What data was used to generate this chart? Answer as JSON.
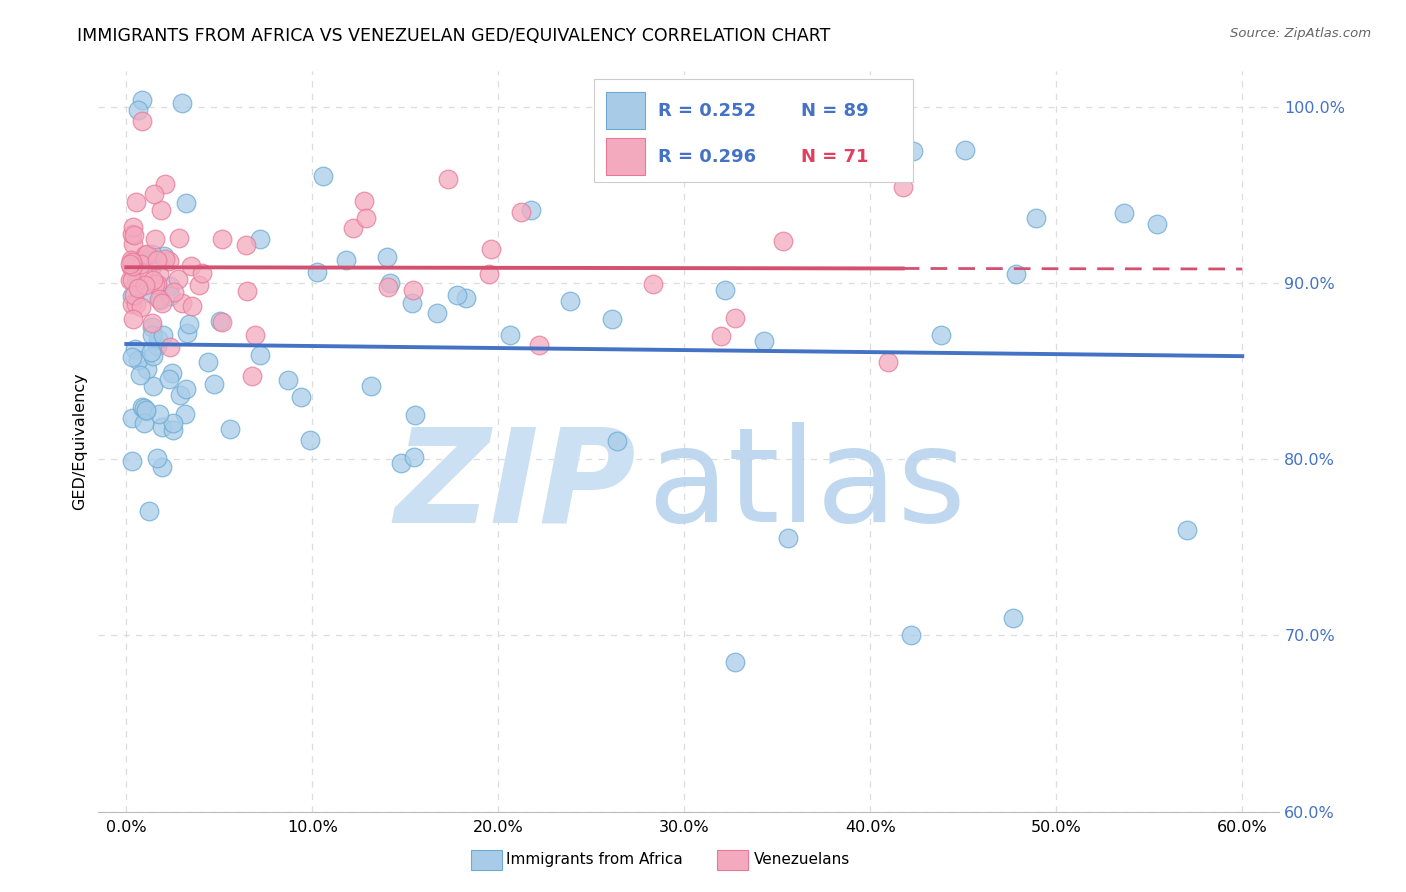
{
  "title": "IMMIGRANTS FROM AFRICA VS VENEZUELAN GED/EQUIVALENCY CORRELATION CHART",
  "source": "Source: ZipAtlas.com",
  "ylabel": "GED/Equivalency",
  "x_min": 0.0,
  "x_max": 60.0,
  "y_min": 60.0,
  "y_max": 102.0,
  "y_ticks": [
    60.0,
    70.0,
    80.0,
    90.0,
    100.0
  ],
  "x_ticks": [
    0.0,
    10.0,
    20.0,
    30.0,
    40.0,
    50.0,
    60.0
  ],
  "legend_label_africa": "Immigrants from Africa",
  "legend_label_venezuela": "Venezuelans",
  "africa_fill": "#a8cce8",
  "africa_edge": "#6aaad4",
  "venezuela_fill": "#f4aabe",
  "venezuela_edge": "#e87898",
  "trend_africa": "#4472c4",
  "trend_venezuela": "#d45070",
  "grid_color": "#dddddd",
  "r_color": "#4472c4",
  "n89_color": "#4472c4",
  "n71_color": "#e04060",
  "watermark_zip_color": "#cce0f4",
  "watermark_atlas_color": "#b8d4ee"
}
